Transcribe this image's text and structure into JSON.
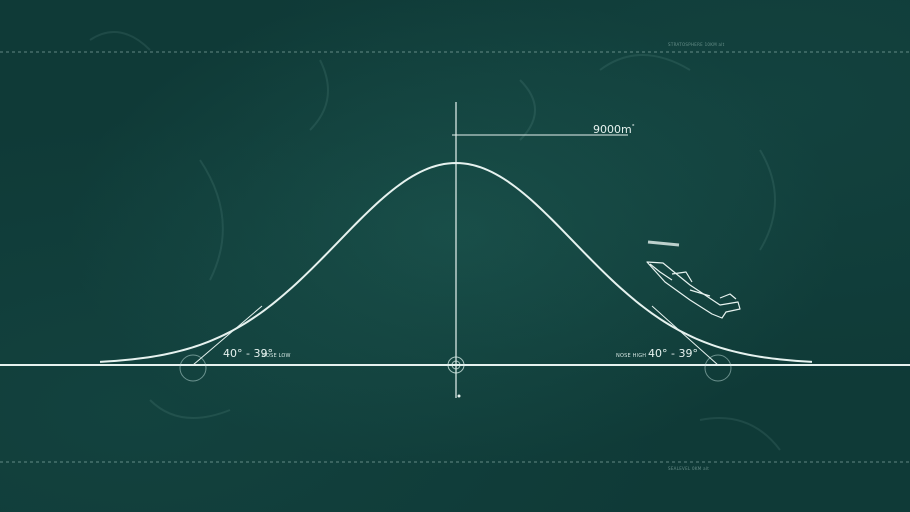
{
  "top_reference": {
    "label": "STRATOSPHERE 10KM alt"
  },
  "bottom_reference": {
    "label": "SEALEVEL 0KM alt"
  },
  "peak": {
    "altitude_label": "9000m",
    "degree_mark": "°"
  },
  "left_angle": {
    "range": "40° - 39°",
    "note": "NOSE LOW"
  },
  "right_angle": {
    "range": "40° - 39°",
    "note": "NOSE HIGH"
  },
  "colors": {
    "background": "#0f3a37",
    "line": "#e6f2ef",
    "faint": "#8fb8b2"
  },
  "icons": {
    "aircraft": "jet-aircraft-icon",
    "crosshair": "crosshair-icon"
  }
}
